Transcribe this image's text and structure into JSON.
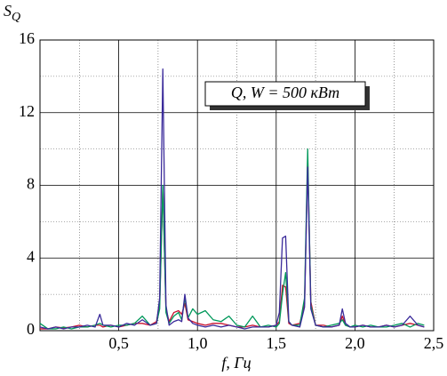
{
  "chart_data": {
    "type": "line",
    "y_label": "S",
    "y_label_sub": "Q",
    "x_label": "f, Гц",
    "annotation": "Q, W = 500 кВт",
    "xlim": [
      0,
      2.5
    ],
    "ylim": [
      0,
      16
    ],
    "xticks": [
      {
        "value": 0.5,
        "label": "0,5"
      },
      {
        "value": 1.0,
        "label": "1,0"
      },
      {
        "value": 1.5,
        "label": "1,5"
      },
      {
        "value": 2.0,
        "label": "2,0"
      },
      {
        "value": 2.5,
        "label": "2,5"
      }
    ],
    "yticks": [
      0,
      4,
      8,
      12,
      16
    ],
    "grid": true,
    "x": [
      0,
      0.05,
      0.1,
      0.15,
      0.2,
      0.25,
      0.3,
      0.35,
      0.38,
      0.4,
      0.45,
      0.5,
      0.55,
      0.6,
      0.65,
      0.7,
      0.74,
      0.76,
      0.78,
      0.8,
      0.82,
      0.85,
      0.88,
      0.9,
      0.92,
      0.94,
      0.97,
      1.0,
      1.05,
      1.1,
      1.15,
      1.2,
      1.25,
      1.3,
      1.35,
      1.4,
      1.45,
      1.5,
      1.52,
      1.54,
      1.56,
      1.58,
      1.6,
      1.65,
      1.68,
      1.7,
      1.72,
      1.75,
      1.8,
      1.85,
      1.9,
      1.92,
      1.94,
      1.97,
      2.0,
      2.05,
      2.1,
      2.15,
      2.2,
      2.25,
      2.3,
      2.35,
      2.4,
      2.44
    ],
    "series": [
      {
        "color": "#c8102e",
        "values": [
          0.1,
          0.1,
          0.2,
          0.15,
          0.2,
          0.3,
          0.2,
          0.3,
          0.3,
          0.2,
          0.3,
          0.2,
          0.3,
          0.4,
          0.4,
          0.3,
          0.5,
          1.5,
          7.9,
          1.2,
          0.5,
          1.0,
          1.1,
          0.9,
          1.5,
          0.6,
          0.5,
          0.4,
          0.3,
          0.4,
          0.4,
          0.3,
          0.2,
          0.2,
          0.3,
          0.2,
          0.2,
          0.3,
          0.5,
          2.5,
          2.4,
          0.4,
          0.3,
          0.4,
          1.5,
          9.5,
          1.6,
          0.3,
          0.3,
          0.2,
          0.3,
          0.8,
          0.3,
          0.2,
          0.2,
          0.3,
          0.2,
          0.2,
          0.3,
          0.2,
          0.3,
          0.4,
          0.3,
          0.2
        ]
      },
      {
        "color": "#00985a",
        "values": [
          0.4,
          0.1,
          0.1,
          0.2,
          0.1,
          0.2,
          0.2,
          0.3,
          0.4,
          0.3,
          0.2,
          0.3,
          0.3,
          0.4,
          0.8,
          0.3,
          0.4,
          1.2,
          8.0,
          1.0,
          0.4,
          0.8,
          1.0,
          0.6,
          1.8,
          0.7,
          1.2,
          0.9,
          1.1,
          0.6,
          0.5,
          0.8,
          0.3,
          0.2,
          0.8,
          0.2,
          0.3,
          0.2,
          0.4,
          2.0,
          3.2,
          0.5,
          0.3,
          0.3,
          1.8,
          10.0,
          1.4,
          0.3,
          0.2,
          0.3,
          0.4,
          0.6,
          0.3,
          0.2,
          0.3,
          0.2,
          0.3,
          0.2,
          0.2,
          0.3,
          0.4,
          0.2,
          0.4,
          0.3
        ]
      },
      {
        "color": "#3a2a9a",
        "values": [
          0.2,
          0.1,
          0.2,
          0.1,
          0.2,
          0.2,
          0.3,
          0.2,
          0.9,
          0.3,
          0.3,
          0.2,
          0.4,
          0.3,
          0.6,
          0.3,
          0.4,
          1.8,
          14.4,
          1.4,
          0.3,
          0.5,
          0.6,
          0.5,
          2.0,
          0.7,
          0.4,
          0.3,
          0.2,
          0.3,
          0.2,
          0.3,
          0.2,
          0.1,
          0.2,
          0.2,
          0.2,
          0.3,
          1.0,
          5.1,
          5.2,
          0.5,
          0.3,
          0.2,
          1.3,
          9.0,
          1.2,
          0.3,
          0.2,
          0.2,
          0.3,
          1.2,
          0.4,
          0.2,
          0.2,
          0.3,
          0.2,
          0.2,
          0.3,
          0.2,
          0.3,
          0.8,
          0.3,
          0.2
        ]
      }
    ]
  }
}
